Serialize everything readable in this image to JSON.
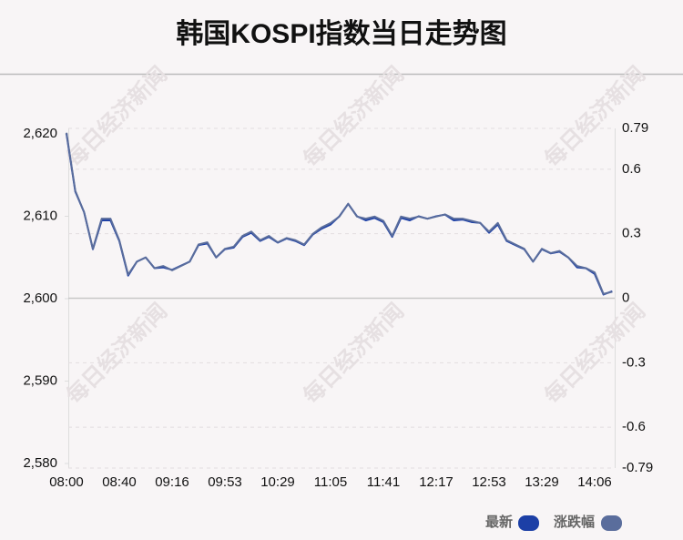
{
  "chart_data": {
    "type": "line",
    "title": "韩国KOSPI指数当日走势图",
    "watermark": "每日经济新闻",
    "categories": [
      "08:00",
      null,
      null,
      null,
      null,
      null,
      "08:40",
      null,
      null,
      null,
      null,
      null,
      "09:16",
      null,
      null,
      null,
      null,
      null,
      "09:53",
      null,
      null,
      null,
      null,
      null,
      "10:29",
      null,
      null,
      null,
      null,
      null,
      "11:05",
      null,
      null,
      null,
      null,
      null,
      "11:41",
      null,
      null,
      null,
      null,
      null,
      "12:17",
      null,
      null,
      null,
      null,
      null,
      "12:53",
      null,
      null,
      null,
      null,
      null,
      "13:29",
      null,
      null,
      null,
      null,
      null,
      "14:06",
      null,
      null
    ],
    "series": [
      {
        "name": "最新",
        "color": "#1c3fa6",
        "values": [
          2620,
          2613,
          2610.5,
          2606,
          2609.5,
          2609.5,
          2607,
          2602.8,
          2604.5,
          2605,
          2603.7,
          2603.8,
          2603.5,
          2604,
          2604.5,
          2606.5,
          2606.7,
          2605,
          2606,
          2606.2,
          2607.5,
          2608,
          2607,
          2607.5,
          2606.8,
          2607.3,
          2607,
          2606.5,
          2607.8,
          2608.5,
          2609,
          2610,
          2611.5,
          2610,
          2609.5,
          2609.8,
          2609.3,
          2607.5,
          2609.8,
          2609.5,
          2610,
          2609.7,
          2610,
          2610.2,
          2609.5,
          2609.6,
          2609.3,
          2609.2,
          2608,
          2609,
          2607,
          2606.5,
          2606,
          2604.5,
          2606,
          2605.5,
          2605.7,
          2605,
          2603.8,
          2603.7,
          2603,
          2600.5,
          2600.9
        ]
      },
      {
        "name": "涨跌幅",
        "color": "#5a6d9c",
        "axis": "y2",
        "values": [
          0.77,
          0.5,
          0.4,
          0.23,
          0.37,
          0.37,
          0.27,
          0.11,
          0.17,
          0.19,
          0.14,
          0.15,
          0.13,
          0.15,
          0.17,
          0.25,
          0.26,
          0.19,
          0.23,
          0.24,
          0.29,
          0.31,
          0.27,
          0.29,
          0.26,
          0.28,
          0.27,
          0.25,
          0.3,
          0.33,
          0.35,
          0.38,
          0.44,
          0.38,
          0.37,
          0.38,
          0.36,
          0.29,
          0.38,
          0.37,
          0.38,
          0.37,
          0.38,
          0.39,
          0.37,
          0.37,
          0.36,
          0.35,
          0.31,
          0.35,
          0.27,
          0.25,
          0.23,
          0.17,
          0.23,
          0.21,
          0.22,
          0.19,
          0.15,
          0.14,
          0.12,
          0.02,
          0.03
        ]
      }
    ],
    "ylim": [
      2580,
      2620
    ],
    "yticks": [
      {
        "value": 2620,
        "label": "2,620"
      },
      {
        "value": 2610,
        "label": "2,610"
      },
      {
        "value": 2600,
        "label": "2,600"
      },
      {
        "value": 2590,
        "label": "2,590"
      },
      {
        "value": 2580,
        "label": "2,580"
      }
    ],
    "y2lim": [
      -0.79,
      0.79
    ],
    "y2ticks": [
      0.79,
      0.6,
      0.3,
      0,
      -0.3,
      -0.6,
      -0.79
    ],
    "grid": true
  }
}
